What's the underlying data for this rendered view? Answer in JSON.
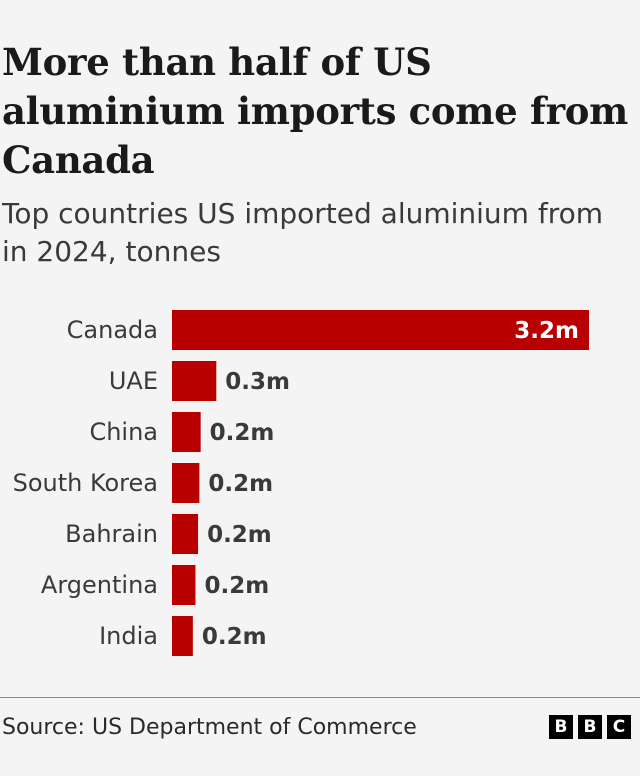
{
  "title": "More than half of US aluminium imports come from Canada",
  "subtitle": "Top countries US imported aluminium from in 2024, tonnes",
  "source": "Source: US Department of Commerce",
  "logo_letters": [
    "B",
    "B",
    "C"
  ],
  "colors": {
    "bar": "#b80000",
    "inside_label": "#ffffff",
    "outside_label": "#3a3a3a"
  },
  "chart_data": {
    "type": "bar",
    "orientation": "horizontal",
    "title": "More than half of US aluminium imports come from Canada",
    "subtitle": "Top countries US imported aluminium from in 2024, tonnes",
    "categories": [
      "Canada",
      "UAE",
      "China",
      "South Korea",
      "Bahrain",
      "Argentina",
      "India"
    ],
    "values": [
      3200000,
      340000,
      220000,
      210000,
      200000,
      180000,
      160000
    ],
    "value_labels": [
      "3.2m",
      "0.3m",
      "0.2m",
      "0.2m",
      "0.2m",
      "0.2m",
      "0.2m"
    ],
    "xlim": [
      0,
      3200000
    ],
    "grid": false,
    "legend": "none"
  }
}
